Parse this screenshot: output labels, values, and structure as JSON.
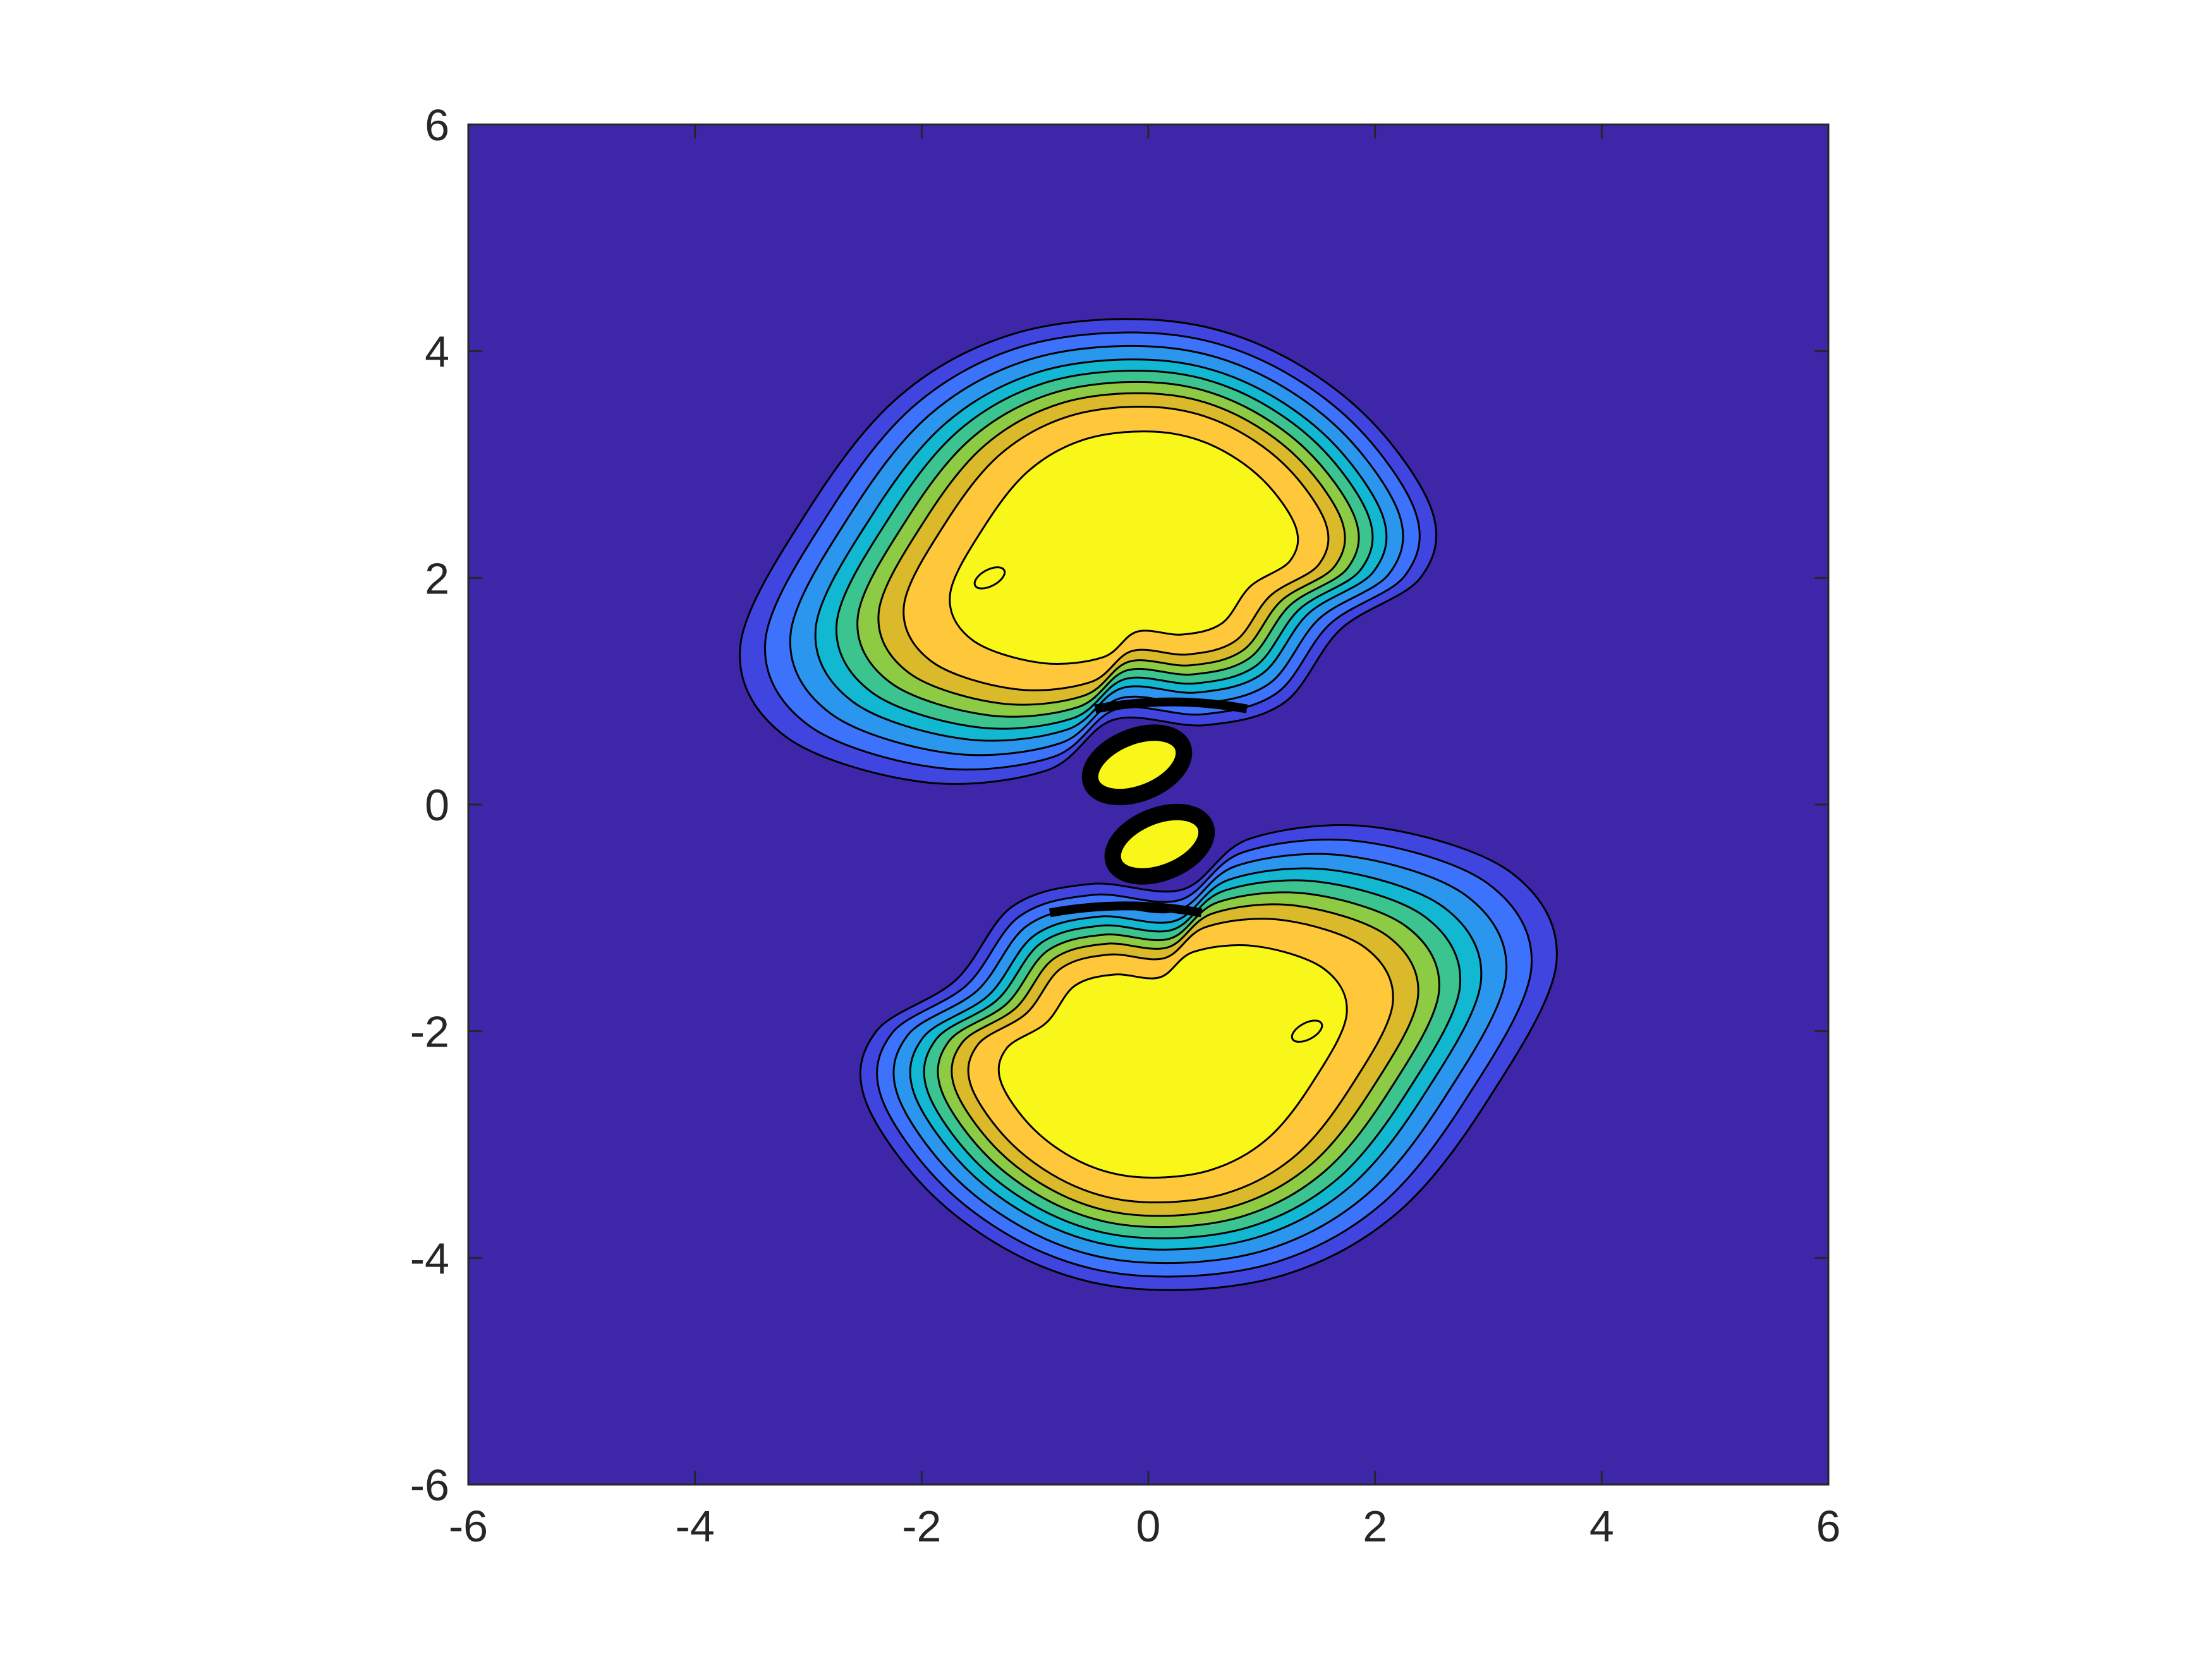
{
  "chart_data": {
    "type": "contourf",
    "title": "",
    "xlabel": "",
    "ylabel": "",
    "xlim": [
      -6,
      6
    ],
    "ylim": [
      -6,
      6
    ],
    "x_ticks": [
      -6,
      -4,
      -2,
      0,
      2,
      4,
      6
    ],
    "y_ticks": [
      -6,
      -4,
      -2,
      0,
      2,
      4,
      6
    ],
    "x_tick_labels": [
      "-6",
      "-4",
      "-2",
      "0",
      "2",
      "4",
      "6"
    ],
    "y_tick_labels": [
      "-6",
      "-4",
      "-2",
      "0",
      "2",
      "4",
      "6"
    ],
    "grid": false,
    "legend": "none",
    "colormap": [
      "#3E26A8",
      "#4145E0",
      "#3D72FC",
      "#2A96EE",
      "#12B7D2",
      "#3BC48F",
      "#8DCB45",
      "#DABA2A",
      "#FFC83A",
      "#F9F71A"
    ],
    "line_color": "#000000",
    "structures": [
      {
        "name": "upper lobe",
        "center": [
          0.1,
          2.3
        ],
        "x_extent": [
          -3.6,
          2.5
        ],
        "y_extent": [
          0.2,
          4.3
        ]
      },
      {
        "name": "lower lobe",
        "center": [
          -0.1,
          -2.3
        ],
        "x_extent": [
          -2.5,
          3.6
        ],
        "y_extent": [
          -4.3,
          -0.2
        ]
      },
      {
        "name": "inner upper peak",
        "center": [
          -0.1,
          0.35
        ]
      },
      {
        "name": "inner lower peak",
        "center": [
          0.1,
          -0.35
        ]
      }
    ]
  }
}
